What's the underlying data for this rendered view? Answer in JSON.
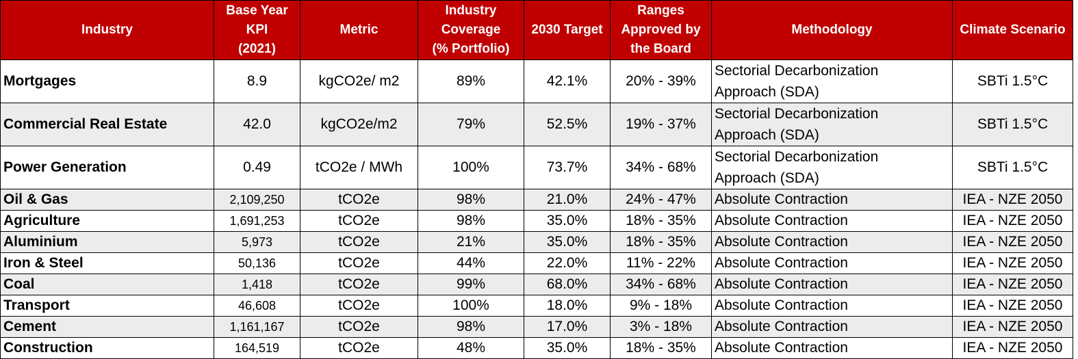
{
  "headers": {
    "industry": "Industry",
    "base_kpi": [
      "Base Year",
      "KPI",
      "(2021)"
    ],
    "metric": "Metric",
    "coverage": [
      "Industry",
      "Coverage",
      "(% Portfolio)"
    ],
    "target": "2030 Target",
    "ranges": [
      "Ranges",
      "Approved by",
      "the Board"
    ],
    "methodology": "Methodology",
    "scenario": "Climate Scenario"
  },
  "colors": {
    "header_bg": "#c00000",
    "header_text": "#ffffff",
    "alt_row": "#ececec"
  },
  "rows": [
    {
      "industry": "Mortgages",
      "kpi": "8.9",
      "metric": "kgCO2e/ m2",
      "coverage": "89%",
      "target": "42.1%",
      "ranges": "20% - 39%",
      "methodology": [
        "Sectorial Decarbonization",
        "Approach (SDA)"
      ],
      "scenario": "SBTi 1.5°C"
    },
    {
      "industry": "Commercial Real Estate",
      "kpi": "42.0",
      "metric": "kgCO2e/m2",
      "coverage": "79%",
      "target": "52.5%",
      "ranges": "19% - 37%",
      "methodology": [
        "Sectorial Decarbonization",
        "Approach (SDA)"
      ],
      "scenario": "SBTi 1.5°C"
    },
    {
      "industry": "Power Generation",
      "kpi": "0.49",
      "metric": "tCO2e / MWh",
      "coverage": "100%",
      "target": "73.7%",
      "ranges": "34% - 68%",
      "methodology": [
        "Sectorial Decarbonization",
        "Approach (SDA)"
      ],
      "scenario": "SBTi 1.5°C"
    },
    {
      "industry": "Oil & Gas",
      "kpi": "2,109,250",
      "metric": "tCO2e",
      "coverage": "98%",
      "target": "21.0%",
      "ranges": "24% - 47%",
      "methodology": "Absolute Contraction",
      "scenario": "IEA - NZE 2050"
    },
    {
      "industry": "Agriculture",
      "kpi": "1,691,253",
      "metric": "tCO2e",
      "coverage": "98%",
      "target": "35.0%",
      "ranges": "18% - 35%",
      "methodology": "Absolute Contraction",
      "scenario": "IEA - NZE 2050"
    },
    {
      "industry": "Aluminium",
      "kpi": "5,973",
      "metric": "tCO2e",
      "coverage": "21%",
      "target": "35.0%",
      "ranges": "18% - 35%",
      "methodology": "Absolute Contraction",
      "scenario": "IEA - NZE 2050"
    },
    {
      "industry": "Iron & Steel",
      "kpi": "50,136",
      "metric": "tCO2e",
      "coverage": "44%",
      "target": "22.0%",
      "ranges": "11% - 22%",
      "methodology": "Absolute Contraction",
      "scenario": "IEA - NZE 2050"
    },
    {
      "industry": "Coal",
      "kpi": "1,418",
      "metric": "tCO2e",
      "coverage": "99%",
      "target": "68.0%",
      "ranges": "34% - 68%",
      "methodology": "Absolute Contraction",
      "scenario": "IEA - NZE 2050"
    },
    {
      "industry": "Transport",
      "kpi": "46,608",
      "metric": "tCO2e",
      "coverage": "100%",
      "target": "18.0%",
      "ranges": "9% - 18%",
      "methodology": "Absolute Contraction",
      "scenario": "IEA - NZE 2050"
    },
    {
      "industry": "Cement",
      "kpi": "1,161,167",
      "metric": "tCO2e",
      "coverage": "98%",
      "target": "17.0%",
      "ranges": "3% - 18%",
      "methodology": "Absolute Contraction",
      "scenario": "IEA - NZE 2050"
    },
    {
      "industry": "Construction",
      "kpi": "164,519",
      "metric": "tCO2e",
      "coverage": "48%",
      "target": "35.0%",
      "ranges": "18% - 35%",
      "methodology": "Absolute Contraction",
      "scenario": "IEA - NZE 2050"
    }
  ]
}
